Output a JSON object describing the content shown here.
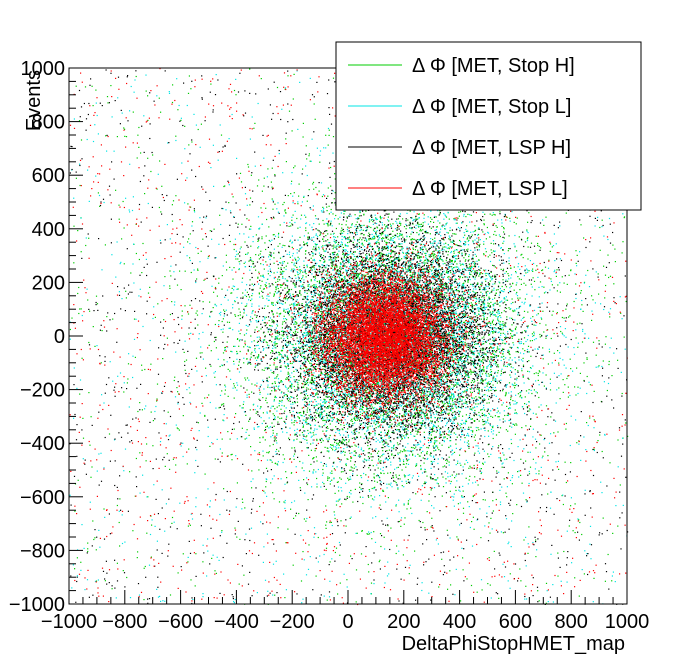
{
  "chart_data": {
    "type": "scatter",
    "title": "",
    "xlabel": "DeltaPhiStopHMET_map",
    "ylabel": "Events",
    "xlim": [
      -1000,
      1000
    ],
    "ylim": [
      -1000,
      1000
    ],
    "x_ticks": [
      -1000,
      -800,
      -600,
      -400,
      -200,
      0,
      200,
      400,
      600,
      800,
      1000
    ],
    "y_ticks": [
      -1000,
      -800,
      -600,
      -400,
      -200,
      0,
      200,
      400,
      600,
      800,
      1000
    ],
    "x_tick_labels": [
      "−1000",
      "−800",
      "−600",
      "−400",
      "−200",
      "0",
      "200",
      "400",
      "600",
      "800",
      "1000"
    ],
    "y_tick_labels": [
      "−1000",
      "−800",
      "−600",
      "−400",
      "−200",
      "0",
      "200",
      "400",
      "600",
      "800",
      "1000"
    ],
    "grid": false,
    "legend_position": "top-right",
    "series": [
      {
        "name": "Δ Φ [MET, Stop H]",
        "color": "#00cc00",
        "center": [
          150,
          0
        ],
        "spread": 260,
        "points": 7000
      },
      {
        "name": "Δ Φ [MET, Stop L]",
        "color": "#00e5e5",
        "center": [
          150,
          0
        ],
        "spread": 240,
        "points": 6000
      },
      {
        "name": "Δ Φ [MET, LSP H]",
        "color": "#000000",
        "center": [
          150,
          0
        ],
        "spread": 180,
        "points": 9000
      },
      {
        "name": "Δ Φ [MET, LSP L]",
        "color": "#ff0000",
        "center": [
          130,
          0
        ],
        "spread": 110,
        "points": 9000
      }
    ]
  }
}
